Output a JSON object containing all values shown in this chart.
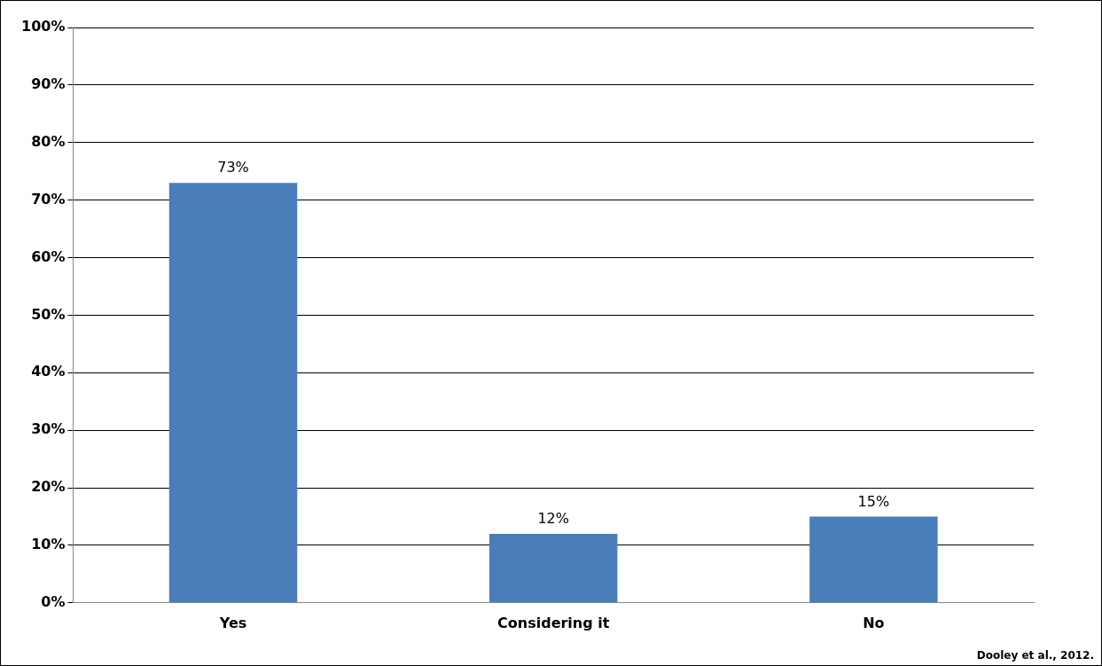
{
  "chart_data": {
    "type": "bar",
    "categories": [
      "Yes",
      "Considering it",
      "No"
    ],
    "values": [
      73,
      12,
      15
    ],
    "color": "#4a7ebb",
    "value_labels": [
      "73%",
      "12%",
      "15%"
    ],
    "ylim": [
      0,
      100
    ],
    "yticks": [
      {
        "value": 0,
        "label": "0%"
      },
      {
        "value": 10,
        "label": "10%"
      },
      {
        "value": 20,
        "label": "20%"
      },
      {
        "value": 30,
        "label": "30%"
      },
      {
        "value": 40,
        "label": "40%"
      },
      {
        "value": 50,
        "label": "50%"
      },
      {
        "value": 60,
        "label": "60%"
      },
      {
        "value": 70,
        "label": "70%"
      },
      {
        "value": 80,
        "label": "80%"
      },
      {
        "value": 90,
        "label": "90%"
      },
      {
        "value": 100,
        "label": "100%"
      }
    ],
    "grid": "y",
    "annotations": [
      "Dooley et al., 2012."
    ]
  }
}
